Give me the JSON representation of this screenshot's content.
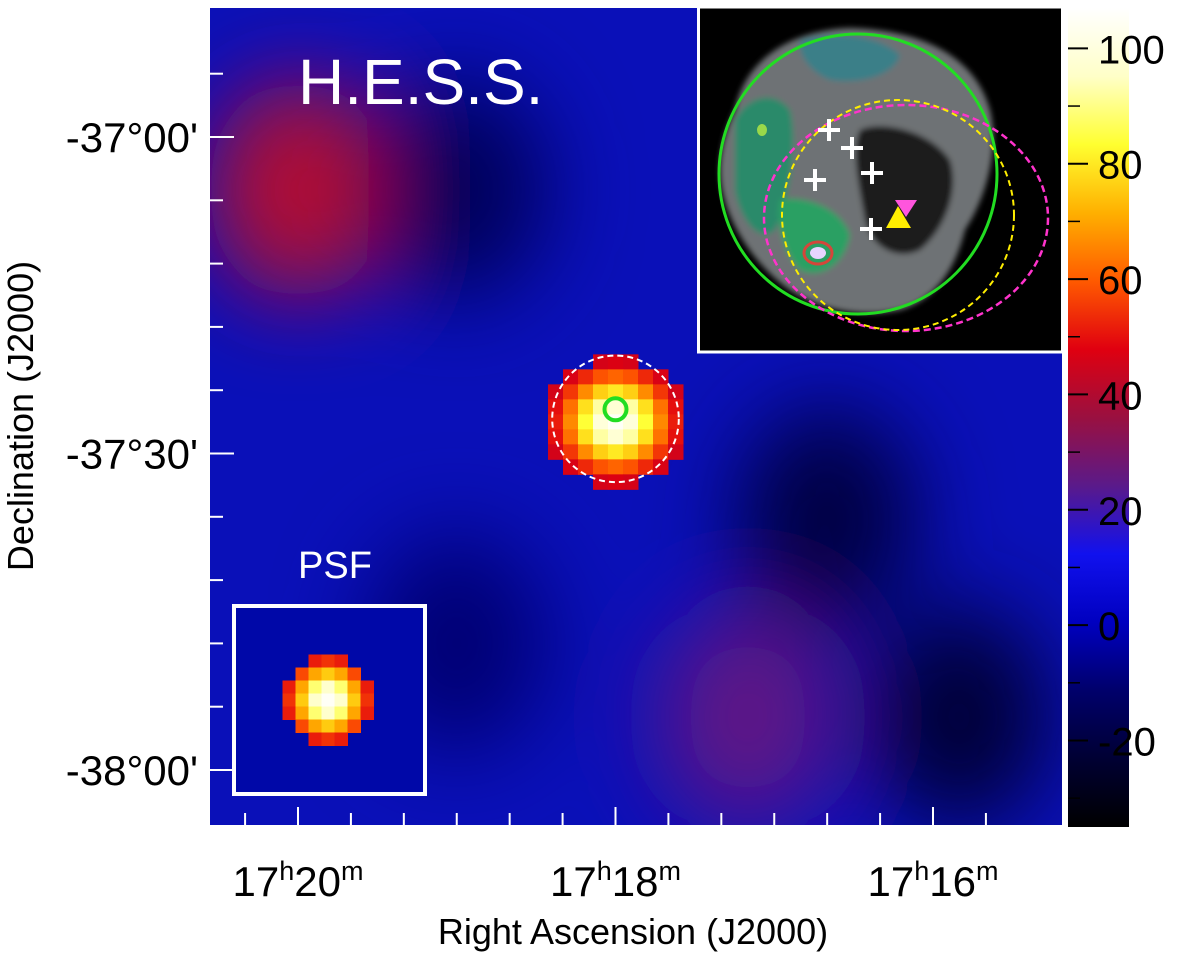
{
  "chart_data": {
    "type": "heatmap",
    "telescope_label": "H.E.S.S.",
    "psf_label": "PSF",
    "xlabel": "Right Ascension (J2000)",
    "ylabel": "Declination (J2000)",
    "x_ticks": [
      {
        "h": "17",
        "m": "20",
        "ra_min": 0
      },
      {
        "h": "17",
        "m": "18",
        "ra_min": -120
      },
      {
        "h": "17",
        "m": "16",
        "ra_min": -240
      }
    ],
    "x_minor_tick_ra_min": [
      20,
      -20,
      -40,
      -60,
      -80,
      -100,
      -140,
      -160,
      -180,
      -200,
      -220,
      -260
    ],
    "x_range_ra_min": [
      22,
      -268
    ],
    "y_ticks": [
      {
        "label": "-37°00'",
        "dec_arcmin": 0
      },
      {
        "label": "-37°30'",
        "dec_arcmin": -30
      },
      {
        "label": "-38°00'",
        "dec_arcmin": -60
      }
    ],
    "y_minor_tick_dec_arcmin": [
      6,
      -6,
      -12,
      -18,
      -24,
      -36,
      -42,
      -48,
      -54,
      -66
    ],
    "y_range_dec_arcmin": [
      12,
      -65
    ],
    "colorbar": {
      "ticks": [
        100,
        80,
        60,
        40,
        20,
        0,
        -20
      ],
      "tick_labels": [
        "100",
        "80",
        "60",
        "40",
        "20",
        "0",
        "-20"
      ],
      "range": [
        -35,
        107
      ],
      "colormap": [
        "#000000",
        "#000033",
        "#00006b",
        "#0000c0",
        "#1111ee",
        "#5a1a8a",
        "#9a1040",
        "#e00010",
        "#ff5a00",
        "#ffb000",
        "#ffff30",
        "#ffffc8",
        "#ffffff"
      ]
    },
    "source": {
      "ra_min": -120,
      "dec_arcmin": -27,
      "peak_value": 105
    },
    "extraction_region": {
      "ra_min": -120,
      "dec_arcmin": -27,
      "radius_arcmin": 10
    },
    "fermi_position_marker": {
      "ra_min": -120,
      "dec_arcmin": -26,
      "color": "#22dd22"
    },
    "background_levels": [
      {
        "ra_min": 0,
        "dec_arcmin": -5,
        "value": 40
      },
      {
        "ra_min": -60,
        "dec_arcmin": -5,
        "value": -15
      },
      {
        "ra_min": -60,
        "dec_arcmin": -48,
        "value": -10
      },
      {
        "ra_min": -200,
        "dec_arcmin": -36,
        "value": -20
      },
      {
        "ra_min": -250,
        "dec_arcmin": -55,
        "value": -22
      },
      {
        "ra_min": -170,
        "dec_arcmin": -55,
        "value": 25
      }
    ],
    "inset_colors": {
      "large_circle": "#22dd22",
      "dashed_magenta": "#ff33cc",
      "dashed_yellow": "#ffee00",
      "crosses": "#ffffff",
      "triangle_down": "#ff55dd",
      "triangle_up": "#ffee00"
    }
  }
}
